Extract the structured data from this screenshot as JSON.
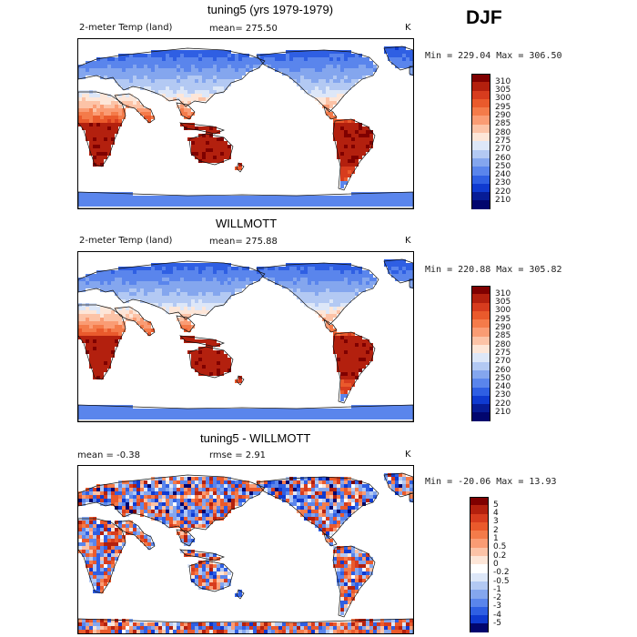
{
  "season": "DJF",
  "chart_data": [
    {
      "type": "heatmap",
      "title": "tuning5 (yrs 1979-1979)",
      "variable": "2-meter Temp (land)",
      "mean_label": "mean= 275.50",
      "units": "K",
      "minmax_label": "Min = 229.04 Max = 306.50",
      "min": 229.04,
      "max": 306.5,
      "mean": 275.5,
      "colorbar": {
        "levels": [
          "310",
          "305",
          "300",
          "295",
          "290",
          "285",
          "280",
          "275",
          "270",
          "260",
          "250",
          "240",
          "230",
          "220",
          "210"
        ],
        "colors": [
          "#7f0000",
          "#b3200e",
          "#d73c1e",
          "#ea5a2c",
          "#f47b4a",
          "#fa9c74",
          "#fcc3a7",
          "#fde6d8",
          "#dde7f8",
          "#b3c9f3",
          "#84a6ee",
          "#5a85ec",
          "#2f5fe3",
          "#0f3ad0",
          "#071c96",
          "#02066e"
        ]
      }
    },
    {
      "type": "heatmap",
      "title": "WILLMOTT",
      "variable": "2-meter Temp (land)",
      "mean_label": "mean= 275.88",
      "units": "K",
      "minmax_label": "Min = 220.88 Max = 305.82",
      "min": 220.88,
      "max": 305.82,
      "mean": 275.88,
      "colorbar": {
        "levels": [
          "310",
          "305",
          "300",
          "295",
          "290",
          "285",
          "280",
          "275",
          "270",
          "260",
          "250",
          "240",
          "230",
          "220",
          "210"
        ],
        "colors": [
          "#7f0000",
          "#b3200e",
          "#d73c1e",
          "#ea5a2c",
          "#f47b4a",
          "#fa9c74",
          "#fcc3a7",
          "#fde6d8",
          "#dde7f8",
          "#b3c9f3",
          "#84a6ee",
          "#5a85ec",
          "#2f5fe3",
          "#0f3ad0",
          "#071c96",
          "#02066e"
        ]
      }
    },
    {
      "type": "heatmap",
      "title": "tuning5 - WILLMOTT",
      "mean_label": "mean =   -0.38",
      "rmse_label": "rmse =    2.91",
      "units": "K",
      "minmax_label": "Min = -20.06 Max =  13.93",
      "min": -20.06,
      "max": 13.93,
      "mean": -0.38,
      "rmse": 2.91,
      "colorbar": {
        "levels": [
          "5",
          "4",
          "3",
          "2",
          "1",
          "0.5",
          "0.2",
          "0",
          "-0.2",
          "-0.5",
          "-1",
          "-2",
          "-3",
          "-4",
          "-5"
        ],
        "colors": [
          "#7f0000",
          "#b3200e",
          "#d73c1e",
          "#ea5a2c",
          "#f47b4a",
          "#fa9c74",
          "#fcc3a7",
          "#fde6d8",
          "#ffffff",
          "#dde7f8",
          "#b3c9f3",
          "#84a6ee",
          "#5a85ec",
          "#2f5fe3",
          "#0f3ad0",
          "#02066e"
        ]
      }
    }
  ]
}
